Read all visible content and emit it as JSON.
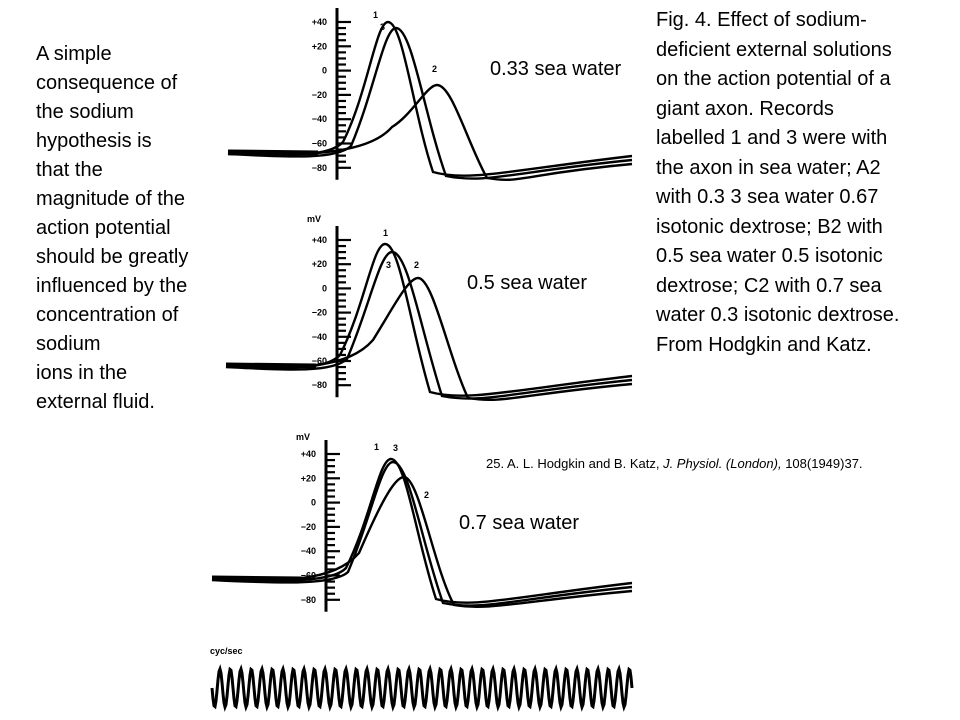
{
  "left_text": {
    "lines": [
      "A simple",
      "consequence of",
      "the sodium",
      "hypothesis is",
      "that the",
      "magnitude of the",
      "action potential",
      "should be greatly",
      "influenced by the",
      "concentration of",
      "sodium",
      "ions in the",
      "external fluid."
    ]
  },
  "caption": {
    "lines": [
      "Fig. 4. Effect of sodium-",
      "deficient external solutions",
      "on the action potential of a",
      "giant axon. Records",
      "labelled 1 and 3 were with",
      "the axon in sea water; A2",
      "with 0.3 3 sea water 0.67",
      "isotonic dextrose; B2 with",
      "0.5 sea water 0.5 isotonic",
      "dextrose; C2 with 0.7 sea",
      "water 0.3 isotonic dextrose.",
      "From Hodgkin and Katz."
    ]
  },
  "conditions": [
    "0.33 sea water",
    "0.5 sea water",
    "0.7 sea water"
  ],
  "reference": {
    "authors": "25. A. L. Hodgkin and B. Katz, ",
    "journal": "J. Physiol. (London),",
    "rest": " 108(1949)37."
  },
  "axis": {
    "unit": "mV",
    "ticks": [
      "+40",
      "+20",
      "0",
      "−20",
      "−40",
      "−60",
      "−80"
    ],
    "time_label": "cyc/sec"
  },
  "trace_labels": [
    "1",
    "3",
    "2"
  ],
  "colors": {
    "ink": "#000000",
    "background": "#ffffff"
  }
}
